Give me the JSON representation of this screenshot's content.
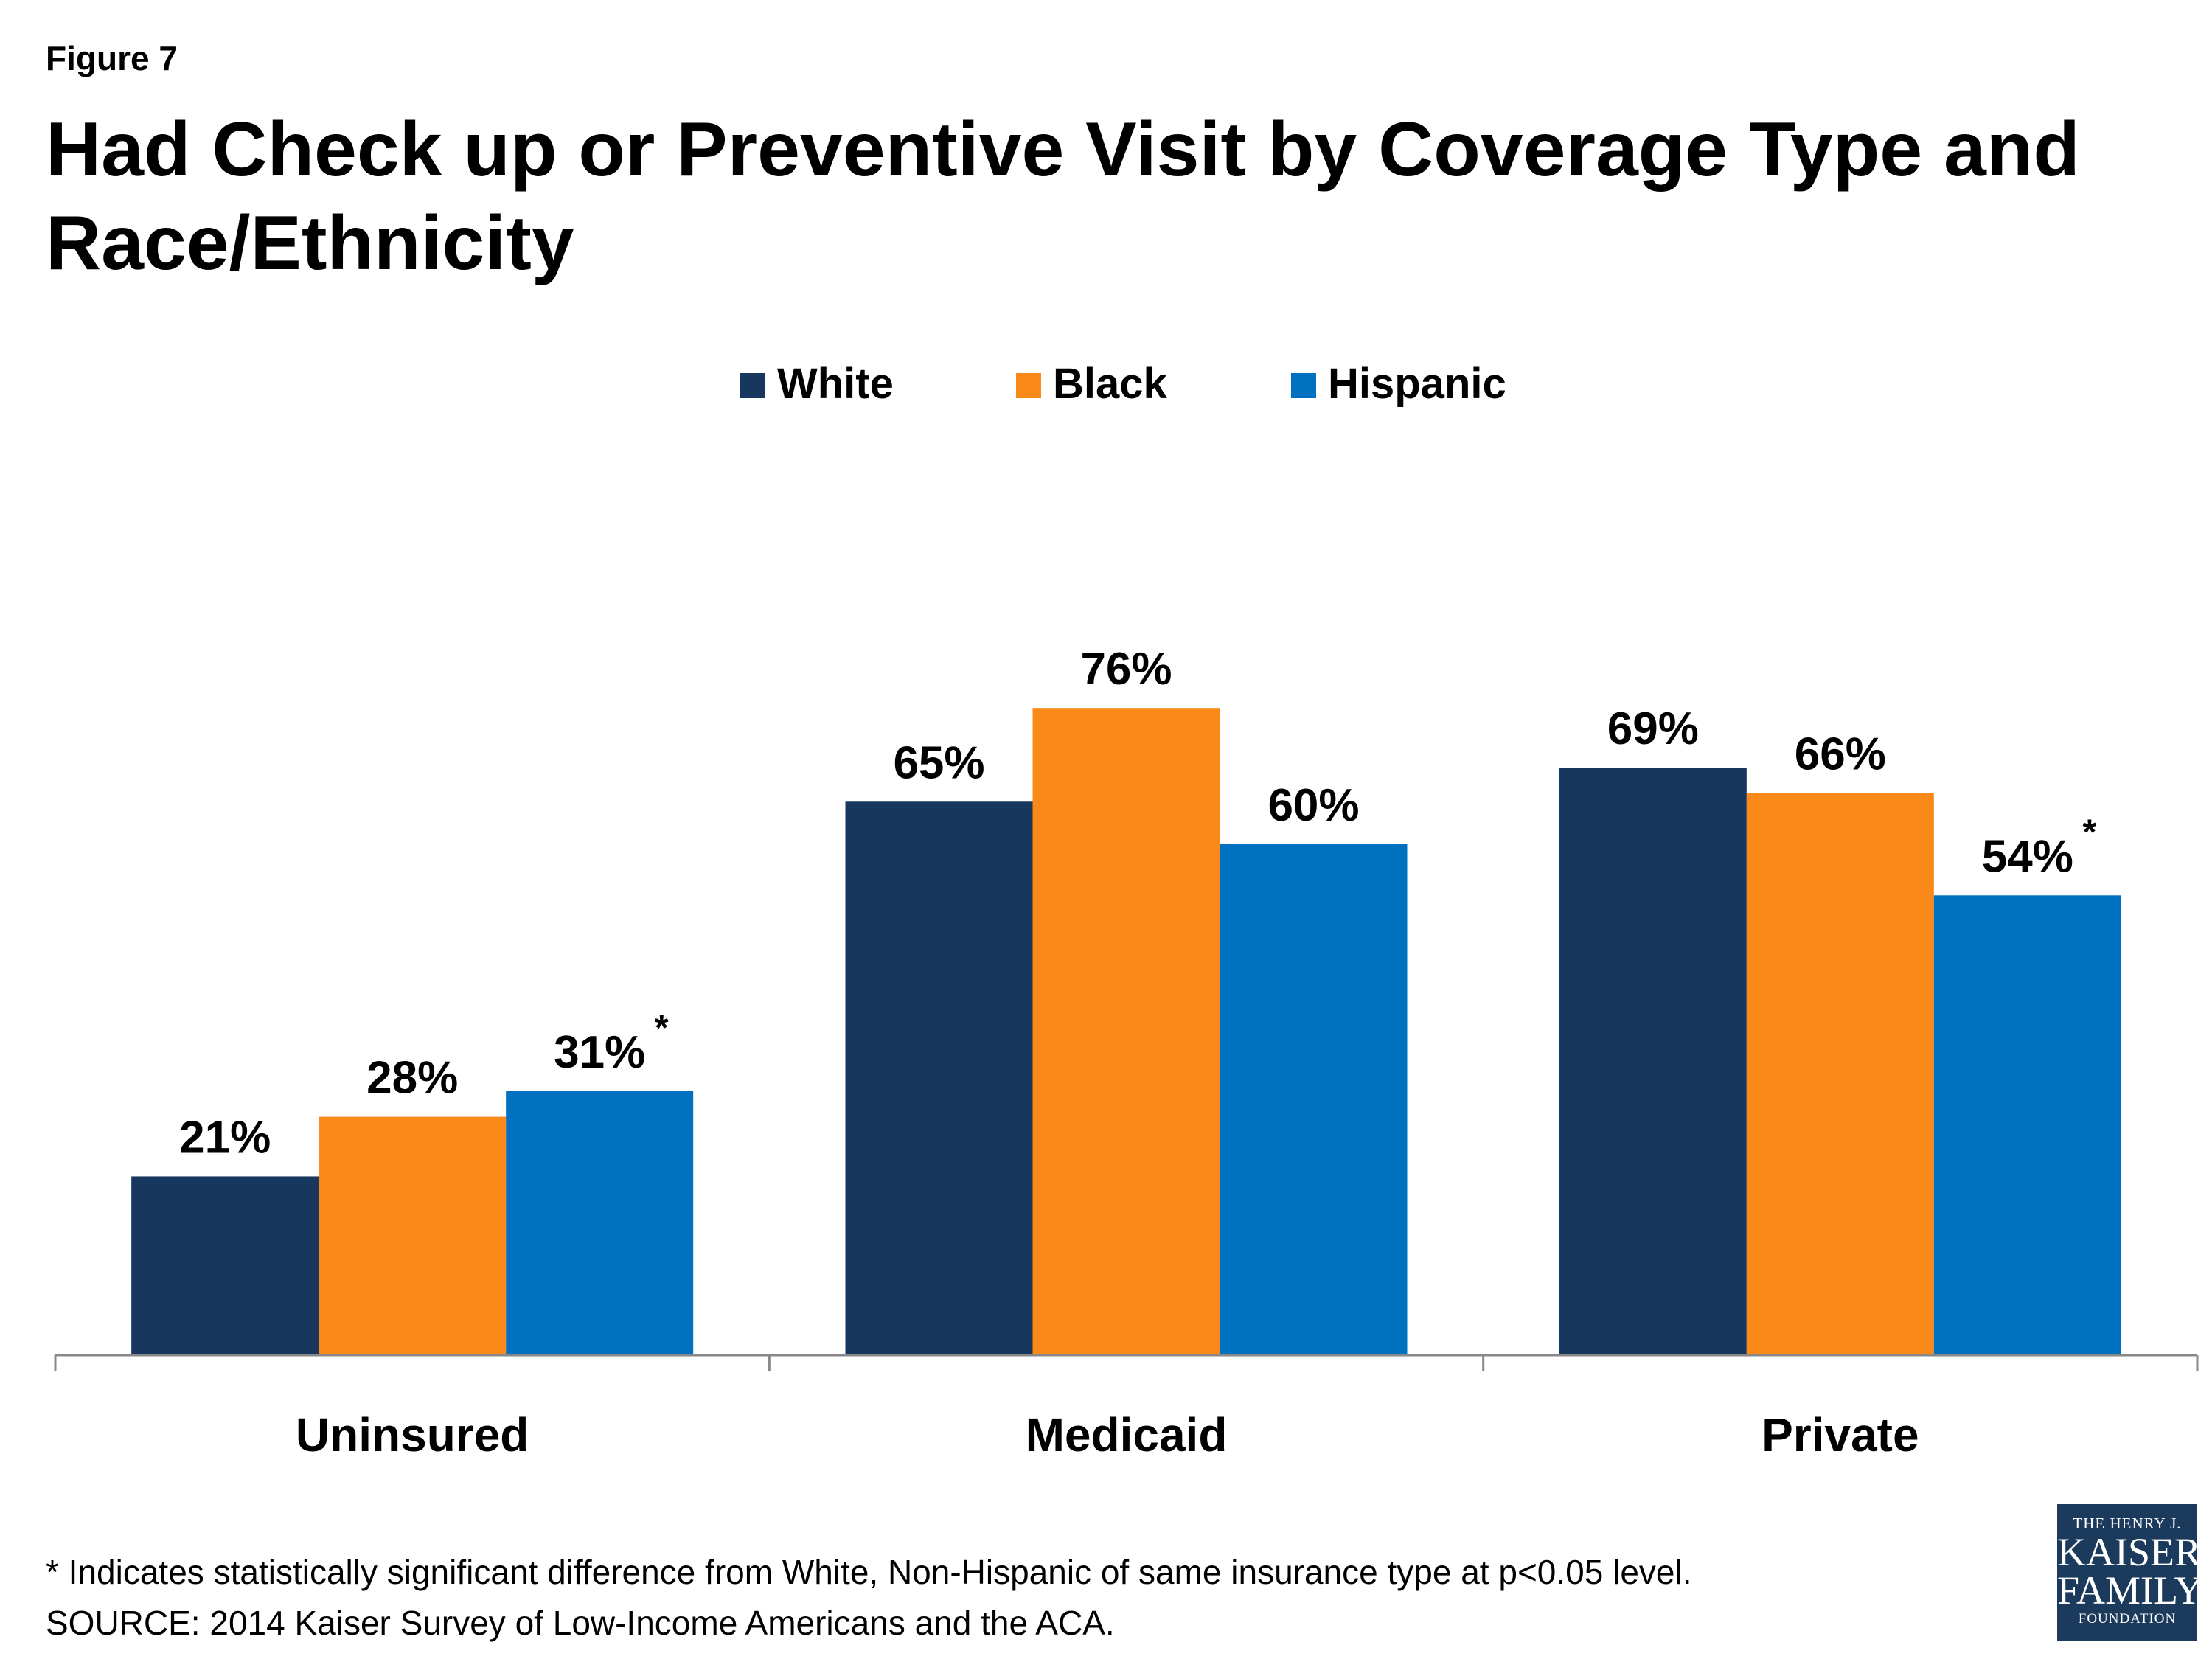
{
  "figure_label": "Figure 7",
  "logo": {
    "line1": "THE HENRY J.",
    "line2": "KAISER",
    "line3": "FAMILY",
    "line4": "FOUNDATION"
  },
  "footnotes": [
    "* Indicates statistically significant difference from White, Non-Hispanic of same insurance type at p<0.05 level.",
    "SOURCE: 2014 Kaiser Survey of Low-Income Americans and the ACA."
  ],
  "colors": {
    "White": "#17375e",
    "Black": "#f98a1a",
    "Hispanic": "#0070c0"
  },
  "chart_data": {
    "type": "bar",
    "title": "Had Check up or Preventive Visit by Coverage Type and Race/Ethnicity",
    "categories": [
      "Uninsured",
      "Medicaid",
      "Private"
    ],
    "series": [
      {
        "name": "White",
        "values": [
          21,
          65,
          69
        ],
        "labels": [
          "21%",
          "65%",
          "69%"
        ],
        "significant": [
          false,
          false,
          false
        ]
      },
      {
        "name": "Black",
        "values": [
          28,
          76,
          66
        ],
        "labels": [
          "28%",
          "76%",
          "66%"
        ],
        "significant": [
          false,
          false,
          false
        ]
      },
      {
        "name": "Hispanic",
        "values": [
          31,
          60,
          54
        ],
        "labels": [
          "31%",
          "60%",
          "54%"
        ],
        "significant": [
          true,
          false,
          true
        ]
      }
    ],
    "significance_marker": "*",
    "ylim": [
      0,
      100
    ],
    "legend": "top",
    "grid": false
  }
}
